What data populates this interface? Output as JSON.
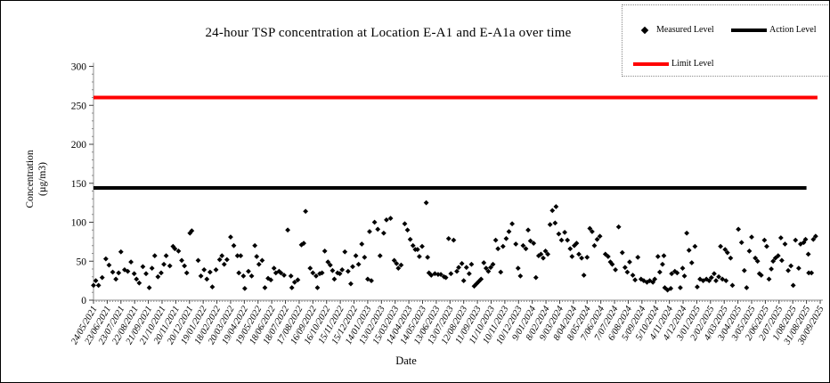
{
  "chart_data": {
    "type": "scatter",
    "title": "24-hour TSP concentration at Location E-A1 and E-A1a over time",
    "xlabel": "Date",
    "ylabel_line1": "Concentration",
    "ylabel_line2": "(µg/m3)",
    "ylim": [
      0,
      300
    ],
    "y_ticks": [
      0,
      50,
      100,
      150,
      200,
      250,
      300
    ],
    "x_tick_interval_days": 30,
    "x_tick_labels": [
      "24/05/2021",
      "23/06/2021",
      "23/07/2021",
      "22/08/2021",
      "21/09/2021",
      "21/10/2021",
      "20/11/2021",
      "20/12/2021",
      "19/01/2022",
      "18/02/2022",
      "20/03/2022",
      "19/04/2022",
      "19/05/2022",
      "18/06/2022",
      "18/07/2022",
      "17/08/2022",
      "16/09/2022",
      "16/10/2022",
      "15/11/2022",
      "15/12/2022",
      "14/01/2023",
      "13/02/2023",
      "15/03/2023",
      "14/04/2023",
      "14/05/2023",
      "13/06/2023",
      "13/07/2023",
      "12/08/2023",
      "11/09/2023",
      "11/10/2023",
      "10/11/2023",
      "10/12/2023",
      "9/01/2024",
      "8/02/2024",
      "9/03/2024",
      "8/04/2024",
      "8/05/2024",
      "7/06/2024",
      "7/07/2024",
      "6/08/2024",
      "5/09/2024",
      "5/10/2024",
      "4/11/2024",
      "4/12/2024",
      "3/01/2025",
      "2/02/2025",
      "4/03/2025",
      "3/04/2025",
      "3/05/2025",
      "2/06/2025",
      "2/07/2025",
      "1/08/2025",
      "31/08/2025",
      "30/09/2025"
    ],
    "grid": false,
    "legend_position": "top-right",
    "series": [
      {
        "name": "Measured Level",
        "type": "scatter",
        "marker": "diamond",
        "color": "#000000",
        "points_format": [
          "days_since_first_tick",
          "ug_per_m3"
        ],
        "points": [
          [
            0,
            19
          ],
          [
            5,
            25
          ],
          [
            11,
            19
          ],
          [
            19,
            29
          ],
          [
            27,
            53
          ],
          [
            34,
            45
          ],
          [
            42,
            36
          ],
          [
            49,
            27
          ],
          [
            55,
            35
          ],
          [
            60,
            62
          ],
          [
            68,
            39
          ],
          [
            75,
            37
          ],
          [
            82,
            49
          ],
          [
            89,
            34
          ],
          [
            94,
            27
          ],
          [
            100,
            22
          ],
          [
            108,
            43
          ],
          [
            115,
            34
          ],
          [
            122,
            16
          ],
          [
            128,
            41
          ],
          [
            134,
            57
          ],
          [
            141,
            30
          ],
          [
            148,
            35
          ],
          [
            154,
            46
          ],
          [
            159,
            57
          ],
          [
            167,
            44
          ],
          [
            174,
            69
          ],
          [
            178,
            66
          ],
          [
            186,
            63
          ],
          [
            193,
            51
          ],
          [
            199,
            44
          ],
          [
            204,
            35
          ],
          [
            211,
            86
          ],
          [
            215,
            89
          ],
          [
            229,
            51
          ],
          [
            235,
            31
          ],
          [
            242,
            39
          ],
          [
            248,
            27
          ],
          [
            255,
            36
          ],
          [
            260,
            17
          ],
          [
            268,
            39
          ],
          [
            276,
            52
          ],
          [
            281,
            57
          ],
          [
            286,
            46
          ],
          [
            292,
            52
          ],
          [
            300,
            81
          ],
          [
            307,
            70
          ],
          [
            315,
            57
          ],
          [
            318,
            35
          ],
          [
            322,
            57
          ],
          [
            328,
            31
          ],
          [
            331,
            15
          ],
          [
            339,
            37
          ],
          [
            346,
            31
          ],
          [
            353,
            70
          ],
          [
            357,
            56
          ],
          [
            362,
            46
          ],
          [
            369,
            51
          ],
          [
            375,
            16
          ],
          [
            382,
            28
          ],
          [
            388,
            26
          ],
          [
            395,
            41
          ],
          [
            399,
            35
          ],
          [
            406,
            37
          ],
          [
            410,
            35
          ],
          [
            417,
            32
          ],
          [
            425,
            90
          ],
          [
            432,
            31
          ],
          [
            434,
            16
          ],
          [
            440,
            23
          ],
          [
            447,
            26
          ],
          [
            455,
            71
          ],
          [
            460,
            73
          ],
          [
            464,
            114
          ],
          [
            474,
            41
          ],
          [
            480,
            35
          ],
          [
            487,
            31
          ],
          [
            490,
            16
          ],
          [
            495,
            34
          ],
          [
            500,
            35
          ],
          [
            506,
            63
          ],
          [
            513,
            49
          ],
          [
            518,
            45
          ],
          [
            523,
            38
          ],
          [
            527,
            27
          ],
          [
            534,
            35
          ],
          [
            539,
            34
          ],
          [
            544,
            39
          ],
          [
            550,
            62
          ],
          [
            557,
            37
          ],
          [
            563,
            21
          ],
          [
            567,
            43
          ],
          [
            574,
            57
          ],
          [
            580,
            46
          ],
          [
            587,
            72
          ],
          [
            593,
            55
          ],
          [
            600,
            27
          ],
          [
            604,
            88
          ],
          [
            608,
            25
          ],
          [
            615,
            100
          ],
          [
            622,
            91
          ],
          [
            627,
            57
          ],
          [
            635,
            86
          ],
          [
            641,
            103
          ],
          [
            650,
            105
          ],
          [
            658,
            51
          ],
          [
            663,
            47
          ],
          [
            667,
            41
          ],
          [
            673,
            45
          ],
          [
            681,
            98
          ],
          [
            687,
            90
          ],
          [
            693,
            78
          ],
          [
            699,
            70
          ],
          [
            704,
            65
          ],
          [
            709,
            65
          ],
          [
            713,
            56
          ],
          [
            719,
            69
          ],
          [
            728,
            125
          ],
          [
            731,
            55
          ],
          [
            734,
            35
          ],
          [
            739,
            32
          ],
          [
            747,
            34
          ],
          [
            754,
            33
          ],
          [
            760,
            33
          ],
          [
            767,
            30
          ],
          [
            771,
            29
          ],
          [
            777,
            79
          ],
          [
            782,
            34
          ],
          [
            788,
            77
          ],
          [
            795,
            37
          ],
          [
            799,
            42
          ],
          [
            806,
            47
          ],
          [
            810,
            25
          ],
          [
            816,
            42
          ],
          [
            822,
            34
          ],
          [
            827,
            46
          ],
          [
            833,
            18
          ],
          [
            838,
            21
          ],
          [
            843,
            24
          ],
          [
            848,
            27
          ],
          [
            854,
            48
          ],
          [
            859,
            41
          ],
          [
            864,
            37
          ],
          [
            869,
            42
          ],
          [
            874,
            46
          ],
          [
            880,
            77
          ],
          [
            885,
            66
          ],
          [
            891,
            36
          ],
          [
            896,
            69
          ],
          [
            903,
            79
          ],
          [
            909,
            88
          ],
          [
            916,
            98
          ],
          [
            924,
            72
          ],
          [
            929,
            41
          ],
          [
            934,
            31
          ],
          [
            940,
            70
          ],
          [
            946,
            66
          ],
          [
            951,
            90
          ],
          [
            956,
            76
          ],
          [
            963,
            73
          ],
          [
            968,
            29
          ],
          [
            974,
            57
          ],
          [
            979,
            59
          ],
          [
            984,
            54
          ],
          [
            989,
            63
          ],
          [
            994,
            59
          ],
          [
            999,
            97
          ],
          [
            1004,
            115
          ],
          [
            1010,
            99
          ],
          [
            1012,
            120
          ],
          [
            1018,
            85
          ],
          [
            1024,
            77
          ],
          [
            1031,
            87
          ],
          [
            1037,
            77
          ],
          [
            1043,
            66
          ],
          [
            1047,
            56
          ],
          [
            1052,
            70
          ],
          [
            1057,
            73
          ],
          [
            1062,
            59
          ],
          [
            1068,
            54
          ],
          [
            1073,
            32
          ],
          [
            1080,
            55
          ],
          [
            1086,
            92
          ],
          [
            1091,
            88
          ],
          [
            1096,
            70
          ],
          [
            1102,
            78
          ],
          [
            1108,
            82
          ],
          [
            1120,
            59
          ],
          [
            1126,
            56
          ],
          [
            1131,
            49
          ],
          [
            1135,
            46
          ],
          [
            1142,
            39
          ],
          [
            1149,
            94
          ],
          [
            1157,
            61
          ],
          [
            1163,
            42
          ],
          [
            1168,
            36
          ],
          [
            1173,
            49
          ],
          [
            1180,
            32
          ],
          [
            1185,
            26
          ],
          [
            1191,
            55
          ],
          [
            1198,
            27
          ],
          [
            1204,
            25
          ],
          [
            1211,
            23
          ],
          [
            1217,
            25
          ],
          [
            1224,
            23
          ],
          [
            1228,
            27
          ],
          [
            1235,
            56
          ],
          [
            1239,
            36
          ],
          [
            1245,
            46
          ],
          [
            1248,
            57
          ],
          [
            1250,
            16
          ],
          [
            1256,
            13
          ],
          [
            1263,
            15
          ],
          [
            1265,
            34
          ],
          [
            1272,
            37
          ],
          [
            1277,
            35
          ],
          [
            1284,
            16
          ],
          [
            1289,
            41
          ],
          [
            1293,
            31
          ],
          [
            1298,
            86
          ],
          [
            1303,
            64
          ],
          [
            1309,
            48
          ],
          [
            1316,
            69
          ],
          [
            1321,
            17
          ],
          [
            1327,
            27
          ],
          [
            1334,
            25
          ],
          [
            1341,
            27
          ],
          [
            1347,
            25
          ],
          [
            1352,
            29
          ],
          [
            1358,
            34
          ],
          [
            1362,
            25
          ],
          [
            1368,
            30
          ],
          [
            1372,
            69
          ],
          [
            1376,
            27
          ],
          [
            1382,
            65
          ],
          [
            1384,
            25
          ],
          [
            1387,
            61
          ],
          [
            1394,
            54
          ],
          [
            1398,
            19
          ],
          [
            1411,
            91
          ],
          [
            1418,
            74
          ],
          [
            1424,
            38
          ],
          [
            1429,
            16
          ],
          [
            1435,
            63
          ],
          [
            1440,
            81
          ],
          [
            1448,
            54
          ],
          [
            1453,
            50
          ],
          [
            1457,
            34
          ],
          [
            1461,
            32
          ],
          [
            1468,
            77
          ],
          [
            1473,
            69
          ],
          [
            1478,
            27
          ],
          [
            1483,
            40
          ],
          [
            1487,
            50
          ],
          [
            1492,
            54
          ],
          [
            1498,
            57
          ],
          [
            1504,
            80
          ],
          [
            1506,
            51
          ],
          [
            1513,
            72
          ],
          [
            1520,
            38
          ],
          [
            1526,
            44
          ],
          [
            1531,
            19
          ],
          [
            1536,
            77
          ],
          [
            1543,
            41
          ],
          [
            1547,
            72
          ],
          [
            1554,
            74
          ],
          [
            1558,
            78
          ],
          [
            1564,
            59
          ],
          [
            1565,
            35
          ],
          [
            1571,
            35
          ],
          [
            1575,
            78
          ],
          [
            1580,
            82
          ]
        ]
      },
      {
        "name": "Action Level",
        "type": "line",
        "color": "#000000",
        "value": 144,
        "span_days": [
          0,
          1560
        ],
        "thickness": 4
      },
      {
        "name": "Limit Level",
        "type": "line",
        "color": "#FF0000",
        "value": 260,
        "span_days": [
          0,
          1584
        ],
        "thickness": 4
      }
    ]
  },
  "legend": {
    "items": [
      {
        "label": "Measured Level",
        "marker": "diamond",
        "color": "#000000"
      },
      {
        "label": "Action Level",
        "marker": "thick-line",
        "color": "#000000"
      },
      {
        "label": "Limit Level",
        "marker": "thick-line",
        "color": "#FF0000"
      }
    ]
  }
}
